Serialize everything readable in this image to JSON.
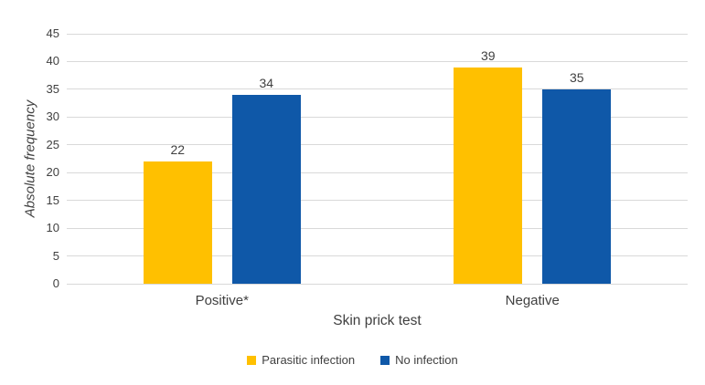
{
  "chart_data": {
    "type": "bar",
    "title": "",
    "categories": [
      "Positive*",
      "Negative"
    ],
    "series": [
      {
        "name": "Parasitic infection",
        "color": "#FFC000",
        "values": [
          22,
          39
        ]
      },
      {
        "name": "No infection",
        "color": "#0F58A8",
        "values": [
          34,
          35
        ]
      }
    ],
    "data_labels": [
      [
        "22",
        "34"
      ],
      [
        "39",
        "35"
      ]
    ],
    "xlabel": "Skin prick test",
    "ylabel": "Absolute frequency",
    "ylim": [
      0,
      45
    ],
    "yticks": [
      "0",
      "5",
      "10",
      "15",
      "20",
      "25",
      "30",
      "35",
      "40",
      "45"
    ],
    "grid": true,
    "legend_position": "bottom",
    "colors": {
      "gridline": "#D9D9D9",
      "text": "#404040",
      "background": "#FFFFFF"
    }
  }
}
